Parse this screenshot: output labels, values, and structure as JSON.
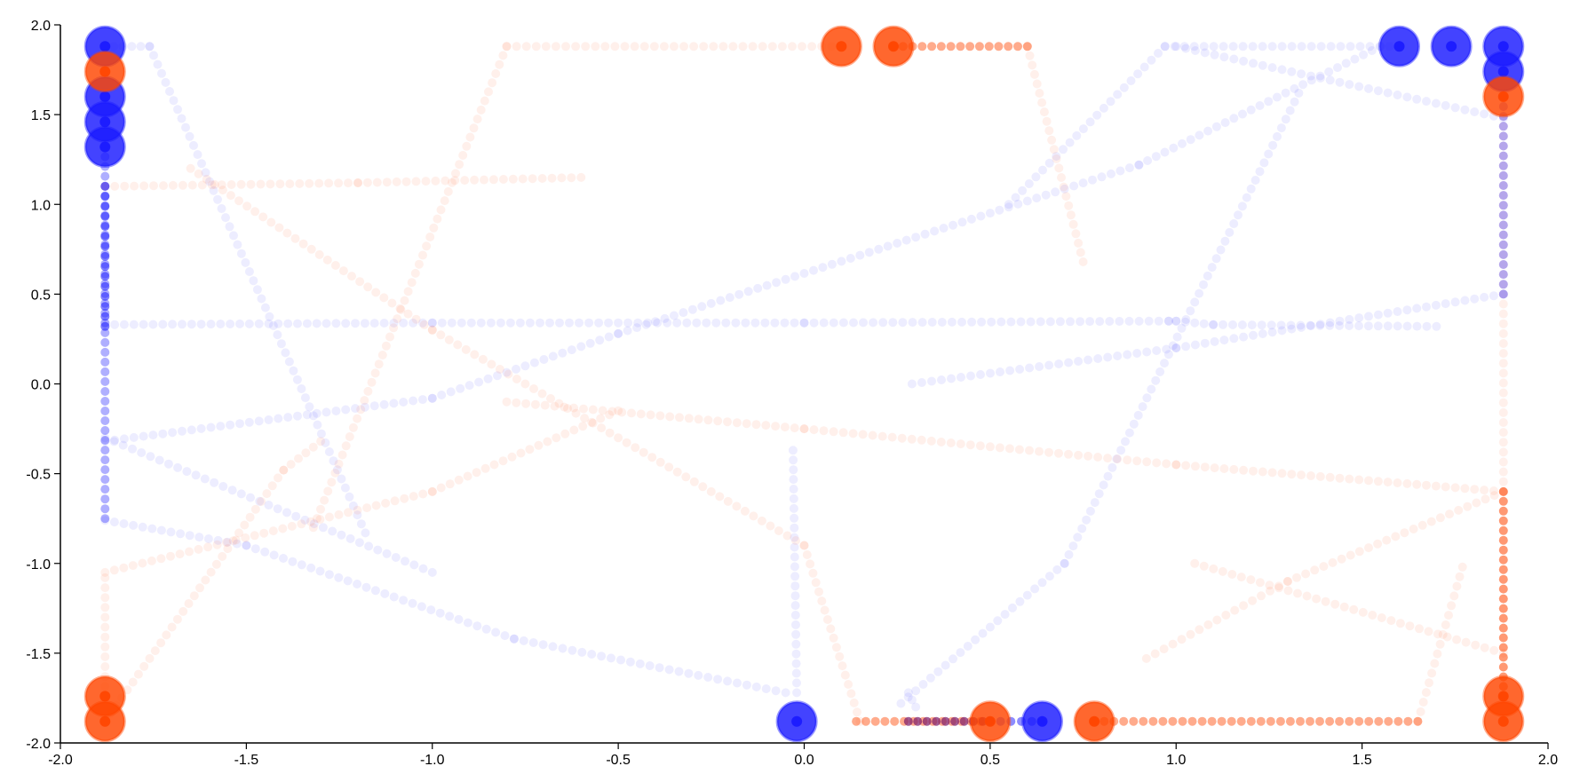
{
  "chart_data": {
    "type": "scatter",
    "title": "",
    "xlabel": "",
    "ylabel": "",
    "xlim": [
      -2.0,
      2.0
    ],
    "ylim": [
      -2.0,
      2.0
    ],
    "xticks": [
      "-2.0",
      "-1.5",
      "-1.0",
      "-0.5",
      "0.0",
      "0.5",
      "1.0",
      "1.5",
      "2.0"
    ],
    "yticks": [
      "2.0",
      "1.5",
      "1.0",
      "0.5",
      "0.0",
      "-0.5",
      "-1.0",
      "-1.5",
      "-2.0"
    ],
    "grid": false,
    "colors": {
      "blue": "#1a1aff",
      "red": "#ff4500",
      "purple": "#7a1a6a"
    },
    "series": [
      {
        "color": "blue",
        "points": [
          [
            -1.88,
            1.88
          ],
          [
            -1.88,
            1.6
          ],
          [
            -1.88,
            1.46
          ],
          [
            -1.88,
            1.32
          ],
          [
            -0.02,
            -1.88
          ],
          [
            0.64,
            -1.88
          ],
          [
            1.6,
            1.88
          ],
          [
            1.74,
            1.88
          ],
          [
            1.88,
            1.88
          ],
          [
            1.88,
            1.74
          ]
        ]
      },
      {
        "color": "red",
        "points": [
          [
            -1.88,
            1.74
          ],
          [
            -1.88,
            -1.74
          ],
          [
            -1.88,
            -1.88
          ],
          [
            0.1,
            1.88
          ],
          [
            0.24,
            1.88
          ],
          [
            0.5,
            -1.88
          ],
          [
            0.78,
            -1.88
          ],
          [
            1.88,
            1.6
          ],
          [
            1.88,
            -1.74
          ],
          [
            1.88,
            -1.88
          ]
        ]
      }
    ],
    "trails": [
      {
        "color": "blue",
        "opacity": 0.08,
        "points": [
          [
            -1.88,
            1.88
          ],
          [
            -1.76,
            1.88
          ],
          [
            -1.18,
            -0.83
          ]
        ]
      },
      {
        "color": "blue",
        "opacity": 0.08,
        "points": [
          [
            -1.88,
            0.33
          ],
          [
            -1.0,
            0.34
          ],
          [
            0.0,
            0.34
          ],
          [
            0.98,
            0.35
          ],
          [
            1.0,
            0.35
          ],
          [
            1.1,
            0.33
          ]
        ]
      },
      {
        "color": "blue",
        "opacity": 0.08,
        "points": [
          [
            -1.88,
            -0.76
          ],
          [
            -1.5,
            -0.9
          ],
          [
            -0.78,
            -1.42
          ],
          [
            -0.05,
            -1.72
          ]
        ]
      },
      {
        "color": "blue",
        "opacity": 0.08,
        "points": [
          [
            -1.88,
            -0.32
          ],
          [
            -1.0,
            -0.08
          ],
          [
            -0.5,
            0.28
          ],
          [
            0.9,
            1.22
          ],
          [
            1.55,
            1.88
          ]
        ]
      },
      {
        "color": "blue",
        "opacity": 0.08,
        "points": [
          [
            -1.88,
            -0.3
          ],
          [
            -1.0,
            -1.05
          ]
        ]
      },
      {
        "color": "blue",
        "opacity": 0.08,
        "points": [
          [
            -0.03,
            -0.37
          ],
          [
            -0.02,
            -1.72
          ]
        ]
      },
      {
        "color": "blue",
        "opacity": 0.08,
        "points": [
          [
            0.26,
            -1.78
          ],
          [
            0.7,
            -1.0
          ],
          [
            1.33,
            1.62
          ]
        ]
      },
      {
        "color": "blue",
        "opacity": 0.08,
        "points": [
          [
            0.28,
            -1.72
          ],
          [
            0.3,
            -1.8
          ]
        ]
      },
      {
        "color": "blue",
        "opacity": 0.08,
        "points": [
          [
            0.55,
            1.0
          ],
          [
            0.97,
            1.88
          ],
          [
            1.6,
            1.88
          ]
        ]
      },
      {
        "color": "blue",
        "opacity": 0.08,
        "points": [
          [
            1.0,
            1.88
          ],
          [
            1.88,
            1.48
          ]
        ]
      },
      {
        "color": "blue",
        "opacity": 0.08,
        "points": [
          [
            0.29,
            -0.0
          ],
          [
            1.0,
            0.2
          ],
          [
            1.88,
            0.5
          ]
        ]
      },
      {
        "color": "blue",
        "opacity": 0.08,
        "points": [
          [
            1.1,
            0.33
          ],
          [
            1.7,
            0.32
          ]
        ]
      },
      {
        "color": "blue",
        "opacity": 0.35,
        "points": [
          [
            1.88,
            1.6
          ],
          [
            1.88,
            0.5
          ]
        ]
      },
      {
        "color": "blue",
        "opacity": 0.35,
        "points": [
          [
            -1.88,
            1.32
          ],
          [
            -1.88,
            -0.75
          ]
        ]
      },
      {
        "color": "blue",
        "opacity": 0.55,
        "points": [
          [
            -1.88,
            1.1
          ],
          [
            -1.88,
            0.32
          ]
        ]
      },
      {
        "color": "red",
        "opacity": 0.08,
        "points": [
          [
            -1.88,
            1.1
          ],
          [
            -1.2,
            1.12
          ],
          [
            -0.6,
            1.15
          ]
        ]
      },
      {
        "color": "red",
        "opacity": 0.08,
        "points": [
          [
            -1.65,
            1.2
          ],
          [
            -1.0,
            0.3
          ],
          [
            0.0,
            -0.9
          ],
          [
            0.15,
            -1.88
          ]
        ]
      },
      {
        "color": "red",
        "opacity": 0.08,
        "points": [
          [
            -1.32,
            -0.8
          ],
          [
            -0.8,
            1.88
          ],
          [
            0.1,
            1.88
          ]
        ]
      },
      {
        "color": "red",
        "opacity": 0.08,
        "points": [
          [
            -1.88,
            -1.08
          ],
          [
            -1.88,
            -1.74
          ]
        ]
      },
      {
        "color": "red",
        "opacity": 0.08,
        "points": [
          [
            -1.88,
            -1.88
          ],
          [
            -1.4,
            -0.48
          ],
          [
            -1.3,
            -0.32
          ]
        ]
      },
      {
        "color": "red",
        "opacity": 0.08,
        "points": [
          [
            -1.88,
            -1.05
          ],
          [
            -1.0,
            -0.6
          ],
          [
            -0.5,
            -0.15
          ]
        ]
      },
      {
        "color": "red",
        "opacity": 0.08,
        "points": [
          [
            -0.8,
            -0.1
          ],
          [
            0.0,
            -0.25
          ],
          [
            1.0,
            -0.45
          ],
          [
            1.88,
            -0.6
          ]
        ]
      },
      {
        "color": "red",
        "opacity": 0.08,
        "points": [
          [
            0.6,
            1.88
          ],
          [
            0.75,
            0.68
          ]
        ]
      },
      {
        "color": "red",
        "opacity": 0.08,
        "points": [
          [
            1.88,
            1.6
          ],
          [
            1.88,
            -0.6
          ]
        ]
      },
      {
        "color": "red",
        "opacity": 0.08,
        "points": [
          [
            1.88,
            -0.6
          ],
          [
            1.3,
            -1.1
          ],
          [
            0.92,
            -1.53
          ]
        ]
      },
      {
        "color": "red",
        "opacity": 0.08,
        "points": [
          [
            1.05,
            -1.0
          ],
          [
            1.88,
            -1.5
          ]
        ]
      },
      {
        "color": "red",
        "opacity": 0.08,
        "points": [
          [
            1.65,
            -1.88
          ],
          [
            1.77,
            -1.02
          ]
        ]
      },
      {
        "color": "red",
        "opacity": 0.45,
        "points": [
          [
            0.24,
            1.88
          ],
          [
            0.6,
            1.88
          ]
        ]
      },
      {
        "color": "red",
        "opacity": 0.45,
        "points": [
          [
            0.78,
            -1.88
          ],
          [
            1.65,
            -1.88
          ]
        ]
      },
      {
        "color": "red",
        "opacity": 0.45,
        "points": [
          [
            0.14,
            -1.88
          ],
          [
            0.5,
            -1.88
          ]
        ]
      },
      {
        "color": "red",
        "opacity": 0.55,
        "points": [
          [
            1.88,
            -0.6
          ],
          [
            1.88,
            -1.74
          ]
        ]
      },
      {
        "color": "purple",
        "opacity": 0.7,
        "points": [
          [
            0.28,
            -1.88
          ],
          [
            0.48,
            -1.88
          ]
        ]
      },
      {
        "color": "blue",
        "opacity": 0.5,
        "points": [
          [
            0.5,
            -1.88
          ],
          [
            0.64,
            -1.88
          ]
        ]
      }
    ]
  }
}
